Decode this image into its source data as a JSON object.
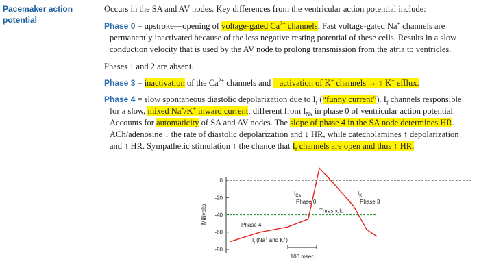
{
  "heading": "Pacemaker action potential",
  "paragraphs": [
    [
      "Occurs in the SA and AV nodes. Key differences from the ventricular action potential include:"
    ],
    [
      "Phase 0",
      " = upstroke—opening of ",
      "voltage-gated Ca",
      "2+",
      " channels",
      ". Fast voltage-gated Na",
      "+",
      " channels are permanently inactivated because of the less negative resting potential of these cells. Results in a slow conduction velocity that is used by the AV node to prolong transmission from the atria to ventricles."
    ],
    [
      "Phases 1 and 2 are absent."
    ],
    [
      "Phase 3",
      " = ",
      "inactivation",
      " of the Ca",
      "2+",
      " channels and ",
      "↑ activation of K",
      "+",
      " channels → ↑ K",
      "+",
      " efflux."
    ],
    [
      "Phase 4",
      " = slow spontaneous diastolic depolarization due to I",
      "f",
      " (",
      "“funny current”",
      "). I",
      "f",
      " channels responsible for a slow, ",
      "mixed Na",
      "+",
      "/K",
      "+",
      " inward current",
      "; different from I",
      "Na",
      " in phase 0 of ventricular action potential. Accounts for ",
      "automaticity",
      " of SA and AV nodes. The ",
      "slope of phase 4 in the SA node determines HR",
      ". ACh/adenosine ↓ the rate of diastolic depolarization and ↓ HR, while catecholamines ↑ depolarization and ↑ HR. Sympathetic stimulation ↑ the chance that ",
      "I",
      "f",
      " channels are open and thus ↑ HR."
    ]
  ],
  "chart_data": {
    "type": "line",
    "y_label": "Millivolts",
    "x": [
      0,
      105,
      200,
      271,
      310,
      355,
      429,
      474,
      510
    ],
    "series": [
      {
        "color": "#e2231a",
        "values": [
          -71,
          -60,
          -54,
          -45,
          14,
          -2,
          -30,
          -57,
          -65
        ]
      }
    ],
    "xlim": [
      -14,
      843
    ],
    "ylim": [
      -84,
      4
    ],
    "yticks": [
      0,
      -20,
      -40,
      -60,
      -80
    ],
    "reference_line": 0,
    "threshold": {
      "value": -40,
      "label": "Threshold",
      "color": "#2a9a3a"
    },
    "scale_bar": {
      "value": 100,
      "label": "100 msec"
    },
    "annotations": [
      [
        "I",
        "Ca"
      ],
      [
        "Phase 0"
      ],
      [
        "I",
        "K"
      ],
      [
        "Phase 3"
      ],
      [
        "Phase 4"
      ],
      [
        "I",
        "f",
        " (Na",
        "+",
        " and K",
        "+",
        ")"
      ]
    ]
  }
}
